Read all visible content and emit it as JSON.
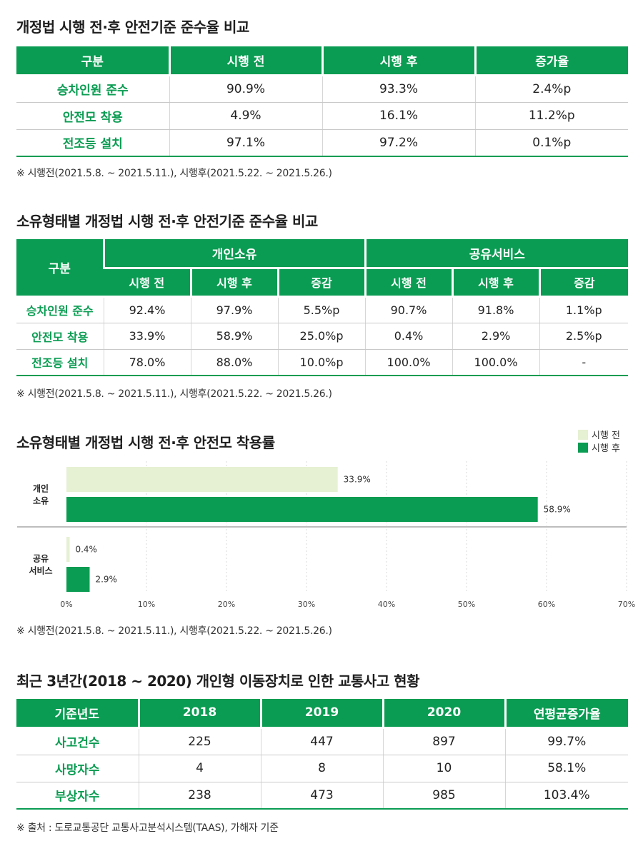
{
  "section1": {
    "title": "개정법 시행 전·후 안전기준 준수율 비교",
    "headers": [
      "구분",
      "시행 전",
      "시행 후",
      "증가율"
    ],
    "rows": [
      [
        "승차인원 준수",
        "90.9%",
        "93.3%",
        "2.4%p"
      ],
      [
        "안전모 착용",
        "4.9%",
        "16.1%",
        "11.2%p"
      ],
      [
        "전조등 설치",
        "97.1%",
        "97.2%",
        "0.1%p"
      ]
    ],
    "note": "※ 시행전(2021.5.8. ~ 2021.5.11.), 시행후(2021.5.22. ~ 2021.5.26.)"
  },
  "section2": {
    "title": "소유형태별 개정법 시행 전·후 안전기준 준수율 비교",
    "header_category": "구분",
    "group1": "개인소유",
    "group2": "공유서비스",
    "sub_headers": [
      "시행 전",
      "시행 후",
      "증감",
      "시행 전",
      "시행 후",
      "증감"
    ],
    "rows": [
      [
        "승차인원 준수",
        "92.4%",
        "97.9%",
        "5.5%p",
        "90.7%",
        "91.8%",
        "1.1%p"
      ],
      [
        "안전모 착용",
        "33.9%",
        "58.9%",
        "25.0%p",
        "0.4%",
        "2.9%",
        "2.5%p"
      ],
      [
        "전조등 설치",
        "78.0%",
        "88.0%",
        "10.0%p",
        "100.0%",
        "100.0%",
        "-"
      ]
    ],
    "note": "※ 시행전(2021.5.8. ~ 2021.5.11.), 시행후(2021.5.22. ~ 2021.5.26.)"
  },
  "section3": {
    "title": "소유형태별 개정법 시행 전·후 안전모 착용률",
    "note": "※ 시행전(2021.5.8. ~ 2021.5.11.), 시행후(2021.5.22. ~ 2021.5.26.)"
  },
  "section4": {
    "title": "최근 3년간(2018 ~ 2020) 개인형 이동장치로 인한 교통사고 현황",
    "headers": [
      "기준년도",
      "2018",
      "2019",
      "2020",
      "연평균증가율"
    ],
    "rows": [
      [
        "사고건수",
        "225",
        "447",
        "897",
        "99.7%"
      ],
      [
        "사망자수",
        "4",
        "8",
        "10",
        "58.1%"
      ],
      [
        "부상자수",
        "238",
        "473",
        "985",
        "103.4%"
      ]
    ],
    "note": "※ 출처 : 도로교통공단 교통사고분석시스템(TAAS), 가해자 기준"
  },
  "colors": {
    "accent": "#0a9c52",
    "before": "#e6f0d3",
    "after": "#0a9c52"
  },
  "chart_data": {
    "type": "bar",
    "orientation": "horizontal",
    "title": "소유형태별 개정법 시행 전·후 안전모 착용률",
    "categories": [
      [
        "개인",
        "소유"
      ],
      [
        "공유",
        "서비스"
      ]
    ],
    "series": [
      {
        "name": "시행 전",
        "values": [
          33.9,
          0.4
        ],
        "labels": [
          "33.9%",
          "0.4%"
        ]
      },
      {
        "name": "시행 후",
        "values": [
          58.9,
          2.9
        ],
        "labels": [
          "58.9%",
          "2.9%"
        ]
      }
    ],
    "xlim": [
      0,
      70
    ],
    "xticks": [
      0,
      10,
      20,
      30,
      40,
      50,
      60,
      70
    ],
    "xtick_labels": [
      "0%",
      "10%",
      "20%",
      "30%",
      "40%",
      "50%",
      "60%",
      "70%"
    ],
    "grid": true,
    "legend": "top-right"
  }
}
